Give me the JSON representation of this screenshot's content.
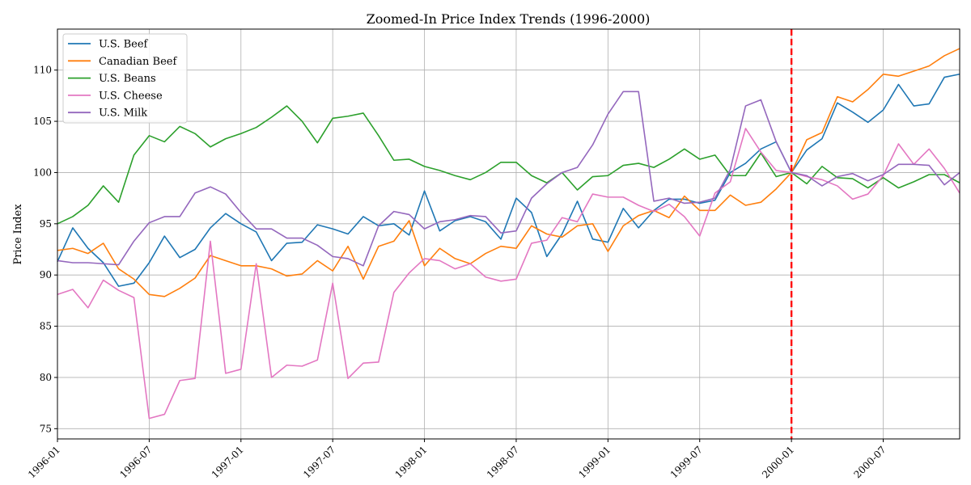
{
  "chart_data": {
    "type": "line",
    "title": "Zoomed-In Price Index Trends (1996-2000)",
    "xlabel": "",
    "ylabel": "Price Index",
    "xlim": [
      "1996-01",
      "2000-12"
    ],
    "ylim": [
      74,
      114
    ],
    "grid": true,
    "legend_position": "top-left",
    "x_ticks": [
      "1996-01",
      "1996-07",
      "1997-01",
      "1997-07",
      "1998-01",
      "1998-07",
      "1999-01",
      "1999-07",
      "2000-01",
      "2000-07"
    ],
    "y_ticks": [
      75,
      80,
      85,
      90,
      95,
      100,
      105,
      110
    ],
    "x": [
      "1996-01",
      "1996-02",
      "1996-03",
      "1996-04",
      "1996-05",
      "1996-06",
      "1996-07",
      "1996-08",
      "1996-09",
      "1996-10",
      "1996-11",
      "1996-12",
      "1997-01",
      "1997-02",
      "1997-03",
      "1997-04",
      "1997-05",
      "1997-06",
      "1997-07",
      "1997-08",
      "1997-09",
      "1997-10",
      "1997-11",
      "1997-12",
      "1998-01",
      "1998-02",
      "1998-03",
      "1998-04",
      "1998-05",
      "1998-06",
      "1998-07",
      "1998-08",
      "1998-09",
      "1998-10",
      "1998-11",
      "1998-12",
      "1999-01",
      "1999-02",
      "1999-03",
      "1999-04",
      "1999-05",
      "1999-06",
      "1999-07",
      "1999-08",
      "1999-09",
      "1999-10",
      "1999-11",
      "1999-12",
      "2000-01",
      "2000-02",
      "2000-03",
      "2000-04",
      "2000-05",
      "2000-06",
      "2000-07",
      "2000-08",
      "2000-09",
      "2000-10",
      "2000-11",
      "2000-12"
    ],
    "series": [
      {
        "name": "U.S. Beef",
        "color": "#1f77b4",
        "values": [
          91.3,
          94.6,
          92.6,
          91.2,
          88.9,
          89.2,
          91.2,
          93.8,
          91.7,
          92.5,
          94.6,
          96.0,
          95.0,
          94.2,
          91.4,
          93.1,
          93.2,
          94.9,
          94.5,
          94.0,
          95.7,
          94.8,
          95.0,
          93.9,
          98.2,
          94.3,
          95.3,
          95.7,
          95.2,
          93.5,
          97.5,
          96.1,
          91.8,
          94.0,
          97.2,
          93.5,
          93.2,
          96.5,
          94.6,
          96.3,
          97.4,
          97.4,
          97.0,
          97.3,
          100.0,
          100.9,
          102.3,
          103.0,
          100.0,
          102.2,
          103.3,
          106.8,
          105.9,
          104.9,
          106.1,
          108.6,
          106.5,
          106.7,
          109.3,
          109.6
        ]
      },
      {
        "name": "Canadian Beef",
        "color": "#ff7f0e",
        "values": [
          92.4,
          92.6,
          92.1,
          93.1,
          90.6,
          89.6,
          88.1,
          87.9,
          88.7,
          89.7,
          91.9,
          91.4,
          90.9,
          90.9,
          90.6,
          89.9,
          90.1,
          91.4,
          90.4,
          92.8,
          89.6,
          92.8,
          93.3,
          95.3,
          90.9,
          92.6,
          91.6,
          91.1,
          92.1,
          92.8,
          92.6,
          94.8,
          94.0,
          93.7,
          94.8,
          95.0,
          92.3,
          94.8,
          95.8,
          96.3,
          95.6,
          97.7,
          96.3,
          96.3,
          97.8,
          96.8,
          97.1,
          98.4,
          100.0,
          103.2,
          103.9,
          107.4,
          106.9,
          108.1,
          109.6,
          109.4,
          109.9,
          110.4,
          111.4,
          112.1
        ]
      },
      {
        "name": "U.S. Beans",
        "color": "#2ca02c",
        "values": [
          95.0,
          95.7,
          96.8,
          98.7,
          97.1,
          101.7,
          103.6,
          103.0,
          104.5,
          103.8,
          102.5,
          103.3,
          103.8,
          104.4,
          105.4,
          106.5,
          105.0,
          102.9,
          105.3,
          105.5,
          105.8,
          103.6,
          101.2,
          101.3,
          100.6,
          100.2,
          99.7,
          99.3,
          100.0,
          101.0,
          101.0,
          99.7,
          99.0,
          100.0,
          98.3,
          99.6,
          99.7,
          100.7,
          100.9,
          100.5,
          101.3,
          102.3,
          101.3,
          101.7,
          99.7,
          99.7,
          101.9,
          99.6,
          100.0,
          98.9,
          100.6,
          99.5,
          99.4,
          98.5,
          99.5,
          98.5,
          99.1,
          99.8,
          99.8,
          99.0
        ]
      },
      {
        "name": "U.S. Cheese",
        "color": "#e377c2",
        "values": [
          88.1,
          88.6,
          86.8,
          89.5,
          88.5,
          87.8,
          76.0,
          76.4,
          79.7,
          79.9,
          93.3,
          80.4,
          80.8,
          91.1,
          80.0,
          81.2,
          81.1,
          81.7,
          89.2,
          79.9,
          81.4,
          81.5,
          88.3,
          90.2,
          91.6,
          91.4,
          90.6,
          91.1,
          89.8,
          89.4,
          89.6,
          93.1,
          93.4,
          95.6,
          95.2,
          97.9,
          97.6,
          97.6,
          96.8,
          96.2,
          96.9,
          95.7,
          93.8,
          98.0,
          99.1,
          104.3,
          102.0,
          100.2,
          100.0,
          99.6,
          99.3,
          98.7,
          97.4,
          97.9,
          99.7,
          102.8,
          100.8,
          102.3,
          100.4,
          98.0
        ]
      },
      {
        "name": "U.S. Milk",
        "color": "#9467bd",
        "values": [
          91.4,
          91.2,
          91.2,
          91.1,
          91.0,
          93.3,
          95.1,
          95.7,
          95.7,
          98.0,
          98.6,
          97.9,
          96.1,
          94.5,
          94.5,
          93.6,
          93.6,
          92.9,
          91.8,
          91.6,
          90.9,
          94.8,
          96.2,
          95.9,
          94.5,
          95.2,
          95.4,
          95.8,
          95.7,
          94.1,
          94.3,
          97.5,
          98.9,
          100.0,
          100.5,
          102.7,
          105.7,
          107.9,
          107.9,
          97.2,
          97.5,
          97.0,
          97.1,
          97.5,
          100.3,
          106.5,
          107.1,
          103.0,
          100.0,
          99.7,
          98.7,
          99.6,
          99.9,
          99.2,
          99.8,
          100.8,
          100.8,
          100.7,
          98.8,
          100.0
        ]
      }
    ],
    "annotations": [
      {
        "type": "vertical-line",
        "x": "2000-01",
        "color": "#ff0000",
        "style": "dashed"
      }
    ]
  }
}
